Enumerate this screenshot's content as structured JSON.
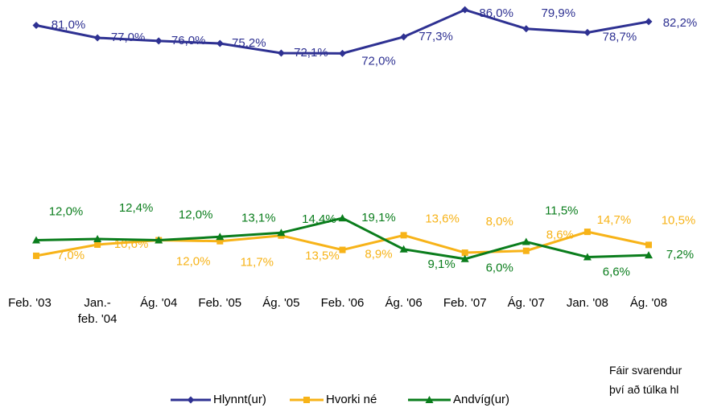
{
  "chart_data": {
    "type": "line",
    "categories": [
      "Feb. '03",
      "Jan.-\nfeb. '04",
      "Ág. '04",
      "Feb. '05",
      "Ág. '05",
      "Feb. '06",
      "Ág. '06",
      "Feb. '07",
      "Ág. '07",
      "Jan. '08",
      "Ág. '08"
    ],
    "ylim": [
      0,
      100
    ],
    "series": [
      {
        "name": "Hlynnt(ur)",
        "color": "#2e3192",
        "marker": "diamond",
        "values": [
          81.0,
          77.0,
          76.0,
          75.2,
          72.1,
          72.0,
          77.3,
          86.0,
          79.9,
          78.7,
          82.2
        ],
        "value_labels": [
          "81,0%",
          "77,0%",
          "76,0%",
          "75,2%",
          "72,1%",
          "72,0%",
          "77,3%",
          "86,0%",
          "79,9%",
          "78,7%",
          "82,2%"
        ]
      },
      {
        "name": "Hvorki né",
        "color": "#f7b318",
        "marker": "square",
        "values": [
          7.0,
          10.6,
          12.0,
          11.7,
          13.5,
          8.9,
          13.6,
          8.0,
          8.6,
          14.7,
          10.5
        ],
        "value_labels": [
          "7,0%",
          "10,6%",
          "12,0%",
          "11,7%",
          "13,5%",
          "8,9%",
          "13,6%",
          "8,0%",
          "8,6%",
          "14,7%",
          "10,5%"
        ]
      },
      {
        "name": "Andvíg(ur)",
        "color": "#0a7d1c",
        "marker": "triangle",
        "values": [
          12.0,
          12.4,
          12.0,
          13.1,
          14.4,
          19.1,
          9.1,
          6.0,
          11.5,
          6.6,
          7.2
        ],
        "value_labels": [
          "12,0%",
          "12,4%",
          "12,0%",
          "13,1%",
          "14,4%",
          "19,1%",
          "9,1%",
          "6,0%",
          "11,5%",
          "6,6%",
          "7,2%"
        ]
      }
    ],
    "footnote": [
      "Fáir svarendur",
      "því að túlka hl"
    ]
  }
}
